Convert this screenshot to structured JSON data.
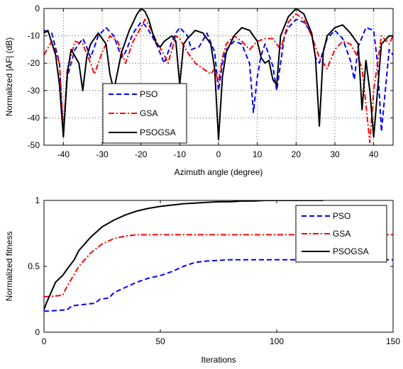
{
  "chart_data": [
    {
      "type": "line",
      "xlabel": "Azimuth angle (degree)",
      "ylabel": "Normalized |AF| (dB)",
      "xlim": [
        -45,
        45
      ],
      "ylim": [
        -50,
        0
      ],
      "xticks": [
        -40,
        -30,
        -20,
        -10,
        0,
        10,
        20,
        30,
        40
      ],
      "yticks": [
        0,
        -10,
        -20,
        -30,
        -40,
        -50
      ],
      "grid": true,
      "legend_position": "lower-left",
      "series": [
        {
          "name": "PSO",
          "color": "#0000ff",
          "dash": "dashed",
          "x": [
            -45,
            -43,
            -41,
            -40,
            -39,
            -37,
            -35,
            -34,
            -33,
            -31,
            -29,
            -27,
            -25,
            -24,
            -22,
            -20,
            -19,
            -18,
            -16,
            -14,
            -12,
            -11,
            -10,
            -8,
            -7,
            -5,
            -3,
            -1,
            0,
            1,
            2,
            4,
            6,
            8,
            9,
            10,
            11,
            12,
            14,
            15,
            17,
            18,
            20,
            22,
            24,
            25,
            26,
            28,
            30,
            32,
            34,
            35,
            36,
            38,
            40,
            41,
            42,
            44,
            45
          ],
          "y": [
            -8,
            -9,
            -20,
            -46,
            -25,
            -15,
            -11,
            -14,
            -18,
            -10,
            -7,
            -10,
            -18,
            -16,
            -9,
            -5,
            -6,
            -8,
            -13,
            -20,
            -12,
            -9,
            -7,
            -10,
            -15,
            -14,
            -9,
            -16,
            -30,
            -20,
            -15,
            -12,
            -13,
            -20,
            -38,
            -25,
            -17,
            -13,
            -21,
            -30,
            -10,
            -7,
            -4,
            -5,
            -9,
            -18,
            -20,
            -11,
            -8,
            -11,
            -19,
            -26,
            -14,
            -7,
            -8,
            -20,
            -45,
            -15,
            -17
          ]
        },
        {
          "name": "GSA",
          "color": "#ff0000",
          "dash": "dashdot",
          "x": [
            -45,
            -43,
            -41,
            -40,
            -39,
            -37,
            -35,
            -33,
            -32,
            -30,
            -28,
            -26,
            -24,
            -22,
            -20,
            -19,
            -18,
            -16,
            -14,
            -13,
            -12,
            -11,
            -10,
            -8,
            -6,
            -4,
            -2,
            -1,
            0,
            1,
            2,
            4,
            6,
            8,
            10,
            12,
            14,
            16,
            17,
            18,
            20,
            22,
            24,
            26,
            28,
            30,
            32,
            34,
            36,
            37,
            38,
            39,
            40,
            41,
            42,
            44,
            45
          ],
          "y": [
            -17,
            -12,
            -20,
            -46,
            -22,
            -12,
            -13,
            -20,
            -24,
            -16,
            -10,
            -12,
            -20,
            -12,
            -7,
            -4,
            -6,
            -12,
            -17,
            -20,
            -15,
            -10,
            -11,
            -16,
            -20,
            -22,
            -24,
            -22,
            -27,
            -18,
            -13,
            -10,
            -12,
            -15,
            -12,
            -11,
            -11,
            -15,
            -10,
            -5,
            -2,
            -4,
            -10,
            -18,
            -22,
            -15,
            -12,
            -13,
            -18,
            -22,
            -35,
            -49,
            -30,
            -20,
            -10,
            -13,
            -10
          ]
        },
        {
          "name": "PSOGSA",
          "color": "#000000",
          "dash": "solid",
          "x": [
            -45,
            -44,
            -42,
            -41,
            -40,
            -39,
            -38,
            -36,
            -35,
            -34,
            -33,
            -31,
            -29,
            -28,
            -27,
            -25,
            -23,
            -21,
            -20,
            -19,
            -18,
            -17,
            -16,
            -15,
            -14,
            -12,
            -11,
            -10,
            -9,
            -8,
            -6,
            -4,
            -2,
            -1,
            0,
            1,
            2,
            4,
            6,
            8,
            10,
            11,
            12,
            13,
            14,
            15,
            16,
            18,
            20,
            22,
            24,
            25,
            26,
            27,
            28,
            30,
            32,
            34,
            36,
            37,
            38,
            39,
            40,
            41,
            42,
            44,
            45
          ],
          "y": [
            -9,
            -8,
            -17,
            -28,
            -47,
            -24,
            -15,
            -20,
            -30,
            -18,
            -13,
            -9,
            -13,
            -24,
            -30,
            -16,
            -8,
            -2,
            0,
            -1,
            -4,
            -9,
            -13,
            -14,
            -12,
            -10,
            -12,
            -28,
            -13,
            -11,
            -8,
            -9,
            -13,
            -22,
            -48,
            -25,
            -16,
            -10,
            -7,
            -8,
            -12,
            -18,
            -20,
            -19,
            -26,
            -28,
            -10,
            -3,
            0,
            -2,
            -9,
            -18,
            -43,
            -16,
            -10,
            -7,
            -6,
            -9,
            -13,
            -37,
            -19,
            -30,
            -47,
            -30,
            -13,
            -10,
            -10
          ]
        }
      ]
    },
    {
      "type": "line",
      "xlabel": "Iterations",
      "ylabel": "Normalized fitness",
      "xlim": [
        0,
        150
      ],
      "ylim": [
        0,
        1
      ],
      "xticks": [
        0,
        50,
        100,
        150
      ],
      "yticks": [
        0,
        0.5,
        1
      ],
      "grid": false,
      "legend_position": "top-right",
      "series": [
        {
          "name": "PSO",
          "color": "#0000ff",
          "dash": "dashed",
          "x": [
            0,
            2,
            10,
            12,
            22,
            24,
            28,
            30,
            35,
            40,
            45,
            50,
            55,
            60,
            65,
            70,
            80,
            90,
            100,
            110,
            120,
            130,
            140,
            150
          ],
          "y": [
            0.16,
            0.16,
            0.17,
            0.2,
            0.22,
            0.25,
            0.26,
            0.3,
            0.34,
            0.38,
            0.41,
            0.43,
            0.46,
            0.5,
            0.53,
            0.54,
            0.55,
            0.55,
            0.55,
            0.55,
            0.55,
            0.55,
            0.55,
            0.55
          ]
        },
        {
          "name": "GSA",
          "color": "#ff0000",
          "dash": "dashdot",
          "x": [
            0,
            2,
            8,
            10,
            15,
            20,
            25,
            30,
            35,
            40,
            45,
            50,
            60,
            70,
            80,
            90,
            100,
            110,
            120,
            130,
            140,
            150
          ],
          "y": [
            0.27,
            0.27,
            0.28,
            0.35,
            0.5,
            0.6,
            0.67,
            0.71,
            0.73,
            0.74,
            0.74,
            0.74,
            0.74,
            0.74,
            0.74,
            0.74,
            0.74,
            0.74,
            0.74,
            0.74,
            0.74,
            0.74
          ]
        },
        {
          "name": "PSOGSA",
          "color": "#000000",
          "dash": "solid",
          "x": [
            0,
            1,
            3,
            5,
            8,
            10,
            13,
            15,
            20,
            25,
            30,
            35,
            40,
            45,
            50,
            55,
            60,
            65,
            70,
            75,
            80,
            85,
            90,
            95,
            100,
            105,
            110,
            115,
            120
          ],
          "y": [
            0.17,
            0.22,
            0.3,
            0.38,
            0.43,
            0.48,
            0.55,
            0.62,
            0.72,
            0.8,
            0.85,
            0.89,
            0.92,
            0.94,
            0.955,
            0.965,
            0.975,
            0.98,
            0.985,
            0.99,
            0.99,
            0.995,
            0.995,
            1,
            1,
            1,
            1,
            1,
            1
          ]
        }
      ]
    }
  ]
}
